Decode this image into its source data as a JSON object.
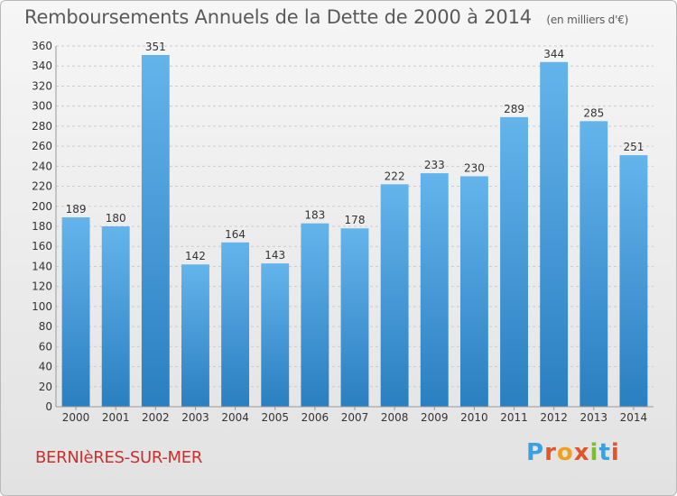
{
  "header": {
    "title": "Remboursements Annuels de la Dette de 2000 à 2014",
    "unit": "(en milliers d'€)"
  },
  "footer": {
    "city": "BERNIèRES-SUR-MER",
    "logo": {
      "letters": [
        {
          "char": "P",
          "color": "#3aa0e0"
        },
        {
          "char": "r",
          "color": "#e0562a"
        },
        {
          "char": "o",
          "color": "#f0a020"
        },
        {
          "char": "x",
          "color": "#e0562a"
        },
        {
          "char": "i",
          "color": "#7bbf2a"
        },
        {
          "char": "t",
          "color": "#3aa0e0"
        },
        {
          "char": "i",
          "color": "#e0562a"
        }
      ]
    }
  },
  "colors": {
    "bar_top": "#64b4ec",
    "bar_bottom": "#2a7fc0",
    "grid": "#cccccc",
    "axis_text": "#333333",
    "label_text": "#333333"
  },
  "chart_data": {
    "type": "bar",
    "title": "Remboursements Annuels de la Dette de 2000 à 2014",
    "xlabel": "",
    "ylabel": "",
    "ylim": [
      0,
      360
    ],
    "ytick_step": 20,
    "grid": true,
    "categories": [
      "2000",
      "2001",
      "2002",
      "2003",
      "2004",
      "2005",
      "2006",
      "2007",
      "2008",
      "2009",
      "2010",
      "2011",
      "2012",
      "2013",
      "2014"
    ],
    "values": [
      189,
      180,
      351,
      142,
      164,
      143,
      183,
      178,
      222,
      233,
      230,
      289,
      344,
      285,
      251
    ]
  }
}
